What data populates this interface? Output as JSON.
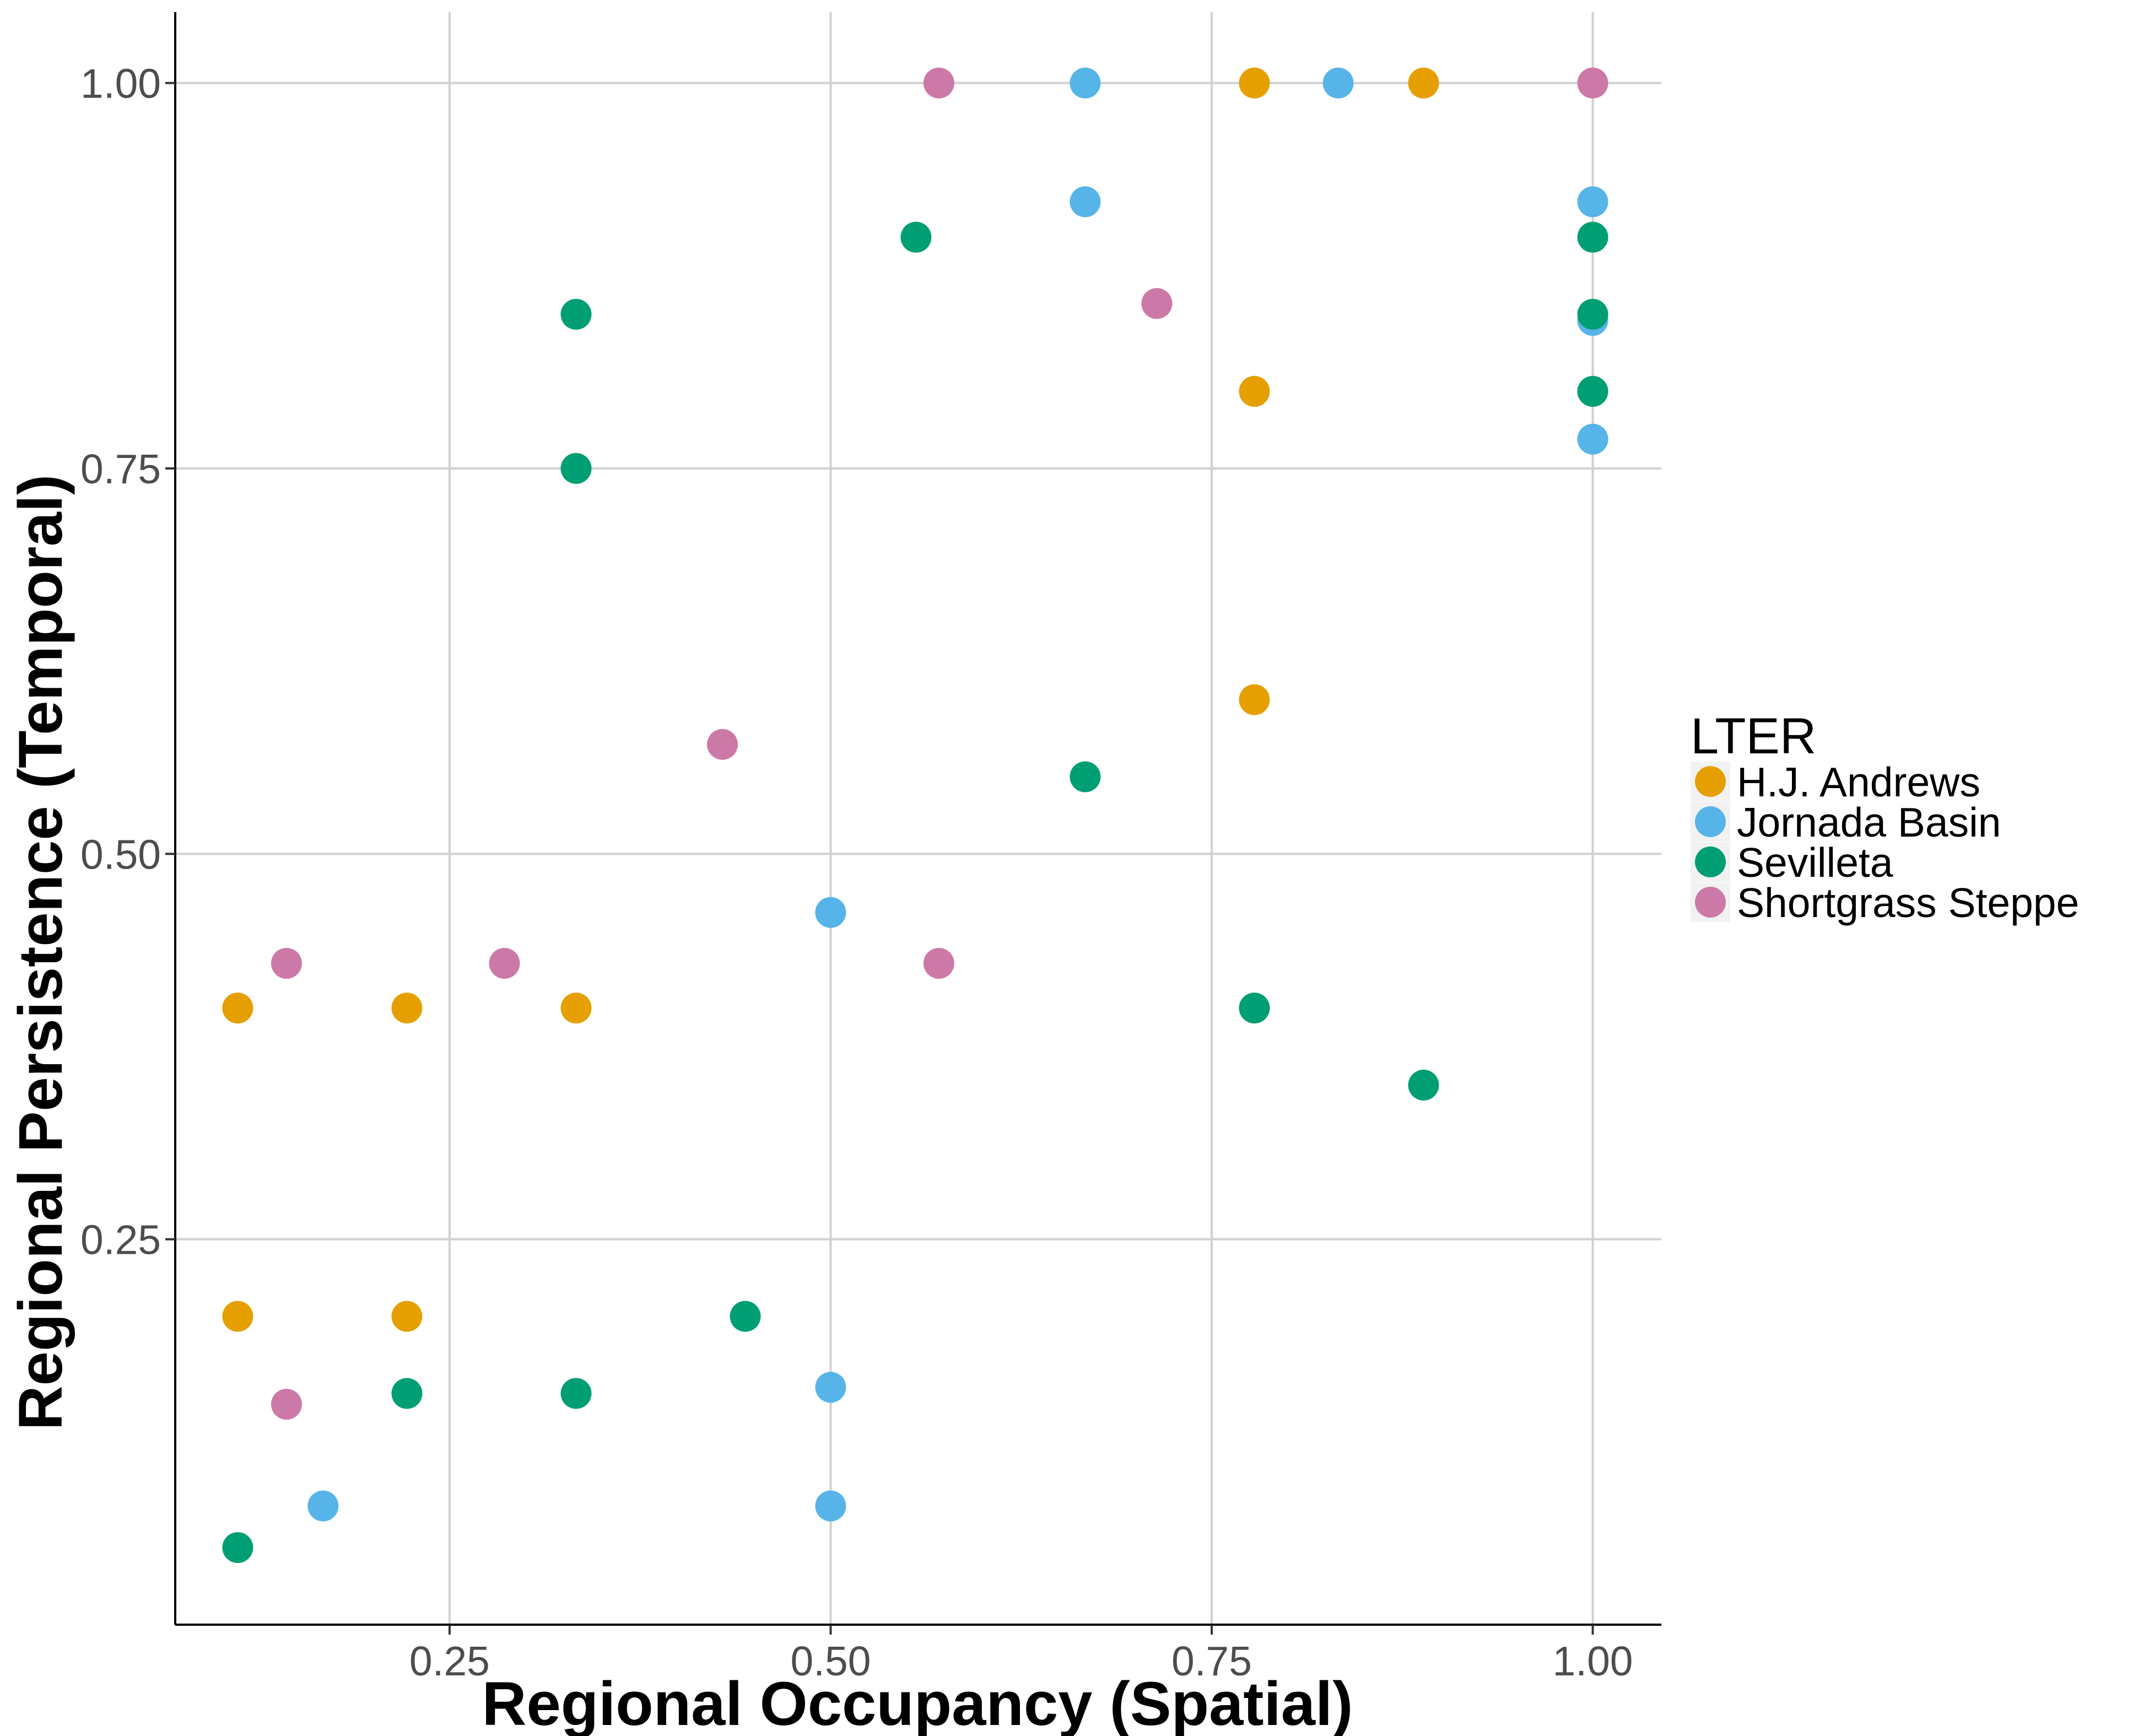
{
  "chart_data": {
    "type": "scatter",
    "xlabel": "Regional Occupancy (Spatial)",
    "ylabel": "Regional Persistence (Temporal)",
    "xlim": [
      0.07,
      1.045
    ],
    "ylim": [
      0.0,
      1.046
    ],
    "x_ticks": [
      {
        "value": 0.25,
        "label": "0.25"
      },
      {
        "value": 0.5,
        "label": "0.50"
      },
      {
        "value": 0.75,
        "label": "0.75"
      },
      {
        "value": 1.0,
        "label": "1.00"
      }
    ],
    "y_ticks": [
      {
        "value": 0.25,
        "label": "0.25"
      },
      {
        "value": 0.5,
        "label": "0.50"
      },
      {
        "value": 0.75,
        "label": "0.75"
      },
      {
        "value": 1.0,
        "label": "1.00"
      }
    ],
    "grid": true,
    "legend": {
      "title": "LTER",
      "position": "right"
    },
    "series": [
      {
        "name": "H.J. Andrews",
        "color": "#E69F00",
        "points": [
          [
            0.111,
            0.4
          ],
          [
            0.111,
            0.2
          ],
          [
            0.222,
            0.4
          ],
          [
            0.222,
            0.2
          ],
          [
            0.333,
            0.4
          ],
          [
            0.778,
            1.0
          ],
          [
            0.778,
            0.8
          ],
          [
            0.778,
            0.6
          ],
          [
            0.889,
            1.0
          ]
        ]
      },
      {
        "name": "Jornada Basin",
        "color": "#56B4E9",
        "points": [
          [
            0.167,
            0.077
          ],
          [
            0.5,
            0.462
          ],
          [
            0.5,
            0.154
          ],
          [
            0.5,
            0.077
          ],
          [
            0.667,
            1.0
          ],
          [
            0.667,
            0.923
          ],
          [
            0.833,
            1.0
          ],
          [
            1.0,
            0.923
          ],
          [
            1.0,
            0.846
          ],
          [
            1.0,
            0.769
          ]
        ]
      },
      {
        "name": "Sevilleta",
        "color": "#009E73",
        "points": [
          [
            0.111,
            0.05
          ],
          [
            0.222,
            0.15
          ],
          [
            0.333,
            0.85
          ],
          [
            0.333,
            0.75
          ],
          [
            0.333,
            0.15
          ],
          [
            0.444,
            0.2
          ],
          [
            0.556,
            0.9
          ],
          [
            0.667,
            0.55
          ],
          [
            0.778,
            0.4
          ],
          [
            0.889,
            0.35
          ],
          [
            1.0,
            0.9
          ],
          [
            1.0,
            0.85
          ],
          [
            1.0,
            0.8
          ]
        ]
      },
      {
        "name": "Shortgrass Steppe",
        "color": "#CC79A7",
        "points": [
          [
            0.143,
            0.429
          ],
          [
            0.143,
            0.143
          ],
          [
            0.286,
            0.429
          ],
          [
            0.429,
            0.571
          ],
          [
            0.571,
            1.0
          ],
          [
            0.571,
            0.429
          ],
          [
            0.714,
            0.857
          ],
          [
            1.0,
            1.0
          ]
        ]
      }
    ]
  }
}
